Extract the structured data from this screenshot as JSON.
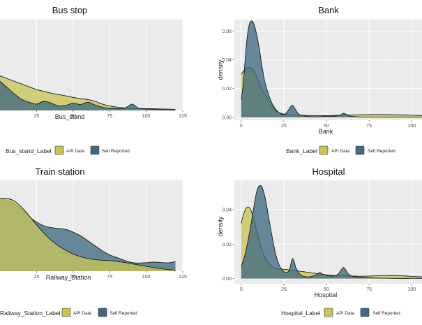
{
  "colors": {
    "api": "#c8c35a",
    "self": "#3f6a80",
    "panel": "#ebebeb",
    "grid": "#ffffff"
  },
  "chart_data": [
    {
      "type": "area",
      "title": "Bus stop",
      "xlabel": "Bus_stand",
      "ylabel": "",
      "xlim": [
        0,
        125
      ],
      "ylim": [
        0,
        0.05
      ],
      "xticks": [
        25,
        50,
        75,
        100,
        125
      ],
      "yticks": [],
      "legend": {
        "title": "Bus_stand_Label",
        "items": [
          "API Data",
          "Self Reported"
        ],
        "position": "bottom"
      },
      "series": [
        {
          "name": "API Data",
          "color": "api",
          "x": [
            0,
            10,
            20,
            25,
            30,
            35,
            40,
            45,
            50,
            55,
            60,
            65,
            70,
            75,
            80,
            85,
            90,
            95,
            100,
            110,
            120
          ],
          "y": [
            0.019,
            0.016,
            0.013,
            0.0115,
            0.0105,
            0.0095,
            0.0088,
            0.008,
            0.0072,
            0.0065,
            0.006,
            0.005,
            0.0035,
            0.0025,
            0.0018,
            0.0014,
            0.0012,
            0.0011,
            0.001,
            0.0008,
            0.0006
          ]
        },
        {
          "name": "Self Reported",
          "color": "self",
          "x": [
            0,
            5,
            10,
            15,
            20,
            25,
            30,
            35,
            40,
            45,
            50,
            55,
            60,
            65,
            70,
            75,
            80,
            85,
            88,
            90,
            92,
            95,
            100,
            110,
            120
          ],
          "y": [
            0.016,
            0.0125,
            0.009,
            0.006,
            0.0045,
            0.0035,
            0.005,
            0.004,
            0.0025,
            0.0028,
            0.004,
            0.0033,
            0.0045,
            0.003,
            0.0018,
            0.0012,
            0.001,
            0.0012,
            0.0025,
            0.0035,
            0.0028,
            0.0012,
            0.0008,
            0.0004,
            0.0003
          ]
        }
      ]
    },
    {
      "type": "area",
      "title": "Bank",
      "xlabel": "Bank",
      "ylabel": "density",
      "xlim": [
        -4,
        106
      ],
      "ylim": [
        -0.002,
        0.068
      ],
      "xticks": [
        0,
        25,
        50,
        75,
        100
      ],
      "yticks": [
        0.0,
        0.02,
        0.04,
        0.06
      ],
      "ytick_labels": [
        "0.00",
        "0.02",
        "0.04",
        "0.06"
      ],
      "legend": {
        "title": "Bank_Label",
        "items": [
          "API Data",
          "Self Reported"
        ],
        "position": "bottom"
      },
      "series": [
        {
          "name": "API Data",
          "color": "api",
          "x": [
            0,
            2,
            4,
            6,
            8,
            10,
            12,
            15,
            18,
            21,
            24,
            27,
            30,
            35,
            40,
            50,
            60,
            70,
            80,
            90,
            100,
            106
          ],
          "y": [
            0.03,
            0.033,
            0.0345,
            0.034,
            0.031,
            0.026,
            0.02,
            0.014,
            0.008,
            0.004,
            0.0025,
            0.002,
            0.0018,
            0.0015,
            0.0013,
            0.0012,
            0.0015,
            0.0018,
            0.002,
            0.0018,
            0.0015,
            0.0012
          ]
        },
        {
          "name": "Self Reported",
          "color": "self",
          "x": [
            0,
            1,
            2,
            3,
            4,
            5,
            6,
            7,
            8,
            9,
            10,
            11,
            12,
            13,
            14,
            16,
            18,
            20,
            22,
            24,
            26,
            28,
            30,
            32,
            34,
            38,
            42,
            46,
            50,
            54,
            58,
            60,
            62,
            64,
            70,
            80,
            90,
            100,
            106
          ],
          "y": [
            0.0125,
            0.021,
            0.035,
            0.05,
            0.06,
            0.0655,
            0.067,
            0.0662,
            0.063,
            0.058,
            0.052,
            0.045,
            0.037,
            0.03,
            0.024,
            0.016,
            0.01,
            0.006,
            0.0035,
            0.002,
            0.0025,
            0.0055,
            0.0085,
            0.005,
            0.002,
            0.0008,
            0.0005,
            0.0005,
            0.0008,
            0.0008,
            0.0015,
            0.0028,
            0.0018,
            0.0008,
            0.0002,
            0.0001,
            0.0001,
            0.0001,
            0.0001
          ]
        }
      ]
    },
    {
      "type": "area",
      "title": "Train station",
      "xlabel": "Railway_Station",
      "ylabel": "",
      "xlim": [
        0,
        125
      ],
      "ylim": [
        0,
        0.05
      ],
      "xticks": [
        25,
        50,
        75,
        100,
        125
      ],
      "yticks": [],
      "legend": {
        "title": "Railway_Station_Label",
        "items": [
          "API Data",
          "Self Reported"
        ],
        "position": "bottom"
      },
      "series": [
        {
          "name": "Self Reported",
          "color": "self",
          "x": [
            0,
            5,
            10,
            15,
            20,
            25,
            30,
            35,
            40,
            45,
            50,
            55,
            60,
            65,
            70,
            75,
            80,
            85,
            90,
            95,
            100,
            105,
            110,
            115,
            120
          ],
          "y": [
            0.04,
            0.039,
            0.037,
            0.034,
            0.03,
            0.027,
            0.025,
            0.024,
            0.0235,
            0.023,
            0.0215,
            0.0195,
            0.0168,
            0.014,
            0.0112,
            0.009,
            0.0075,
            0.006,
            0.0048,
            0.0045,
            0.0047,
            0.005,
            0.0048,
            0.0046,
            0.0053
          ]
        },
        {
          "name": "API Data",
          "color": "api",
          "x": [
            0,
            5,
            10,
            15,
            20,
            25,
            30,
            35,
            40,
            45,
            50,
            55,
            60,
            65,
            70,
            75,
            80,
            85,
            90,
            95,
            100,
            105,
            110,
            115,
            120
          ],
          "y": [
            0.04,
            0.04,
            0.0385,
            0.035,
            0.0305,
            0.0255,
            0.021,
            0.017,
            0.014,
            0.0115,
            0.0095,
            0.008,
            0.007,
            0.0064,
            0.006,
            0.0058,
            0.0054,
            0.0048,
            0.0041,
            0.0034,
            0.0027,
            0.002,
            0.0014,
            0.0009,
            0.0005
          ]
        }
      ]
    },
    {
      "type": "area",
      "title": "Hospital",
      "xlabel": "Hospital",
      "ylabel": "density",
      "xlim": [
        -4,
        106
      ],
      "ylim": [
        -0.003,
        0.057
      ],
      "xticks": [
        0,
        25,
        50,
        75,
        100
      ],
      "yticks": [
        0.0,
        0.02,
        0.04
      ],
      "ytick_labels": [
        "0.00",
        "0.02",
        "0.04"
      ],
      "legend": {
        "title": "Hospital_Label",
        "items": [
          "API Data",
          "Self Reported"
        ],
        "position": "bottom"
      },
      "series": [
        {
          "name": "API Data",
          "color": "api",
          "x": [
            0,
            1,
            2,
            3,
            4,
            5,
            6,
            7,
            8,
            9,
            10,
            12,
            14,
            16,
            18,
            20,
            22,
            24,
            27,
            30,
            35,
            40,
            45,
            50,
            55,
            60,
            65,
            70,
            75,
            80,
            85,
            90,
            95,
            100,
            106
          ],
          "y": [
            0.032,
            0.036,
            0.039,
            0.041,
            0.0415,
            0.041,
            0.039,
            0.036,
            0.032,
            0.028,
            0.024,
            0.017,
            0.012,
            0.009,
            0.007,
            0.0058,
            0.0055,
            0.0055,
            0.0052,
            0.0048,
            0.0042,
            0.0035,
            0.0028,
            0.0022,
            0.0018,
            0.0017,
            0.0015,
            0.0014,
            0.0015,
            0.0017,
            0.0018,
            0.0018,
            0.0016,
            0.0013,
            0.001
          ]
        },
        {
          "name": "Self Reported",
          "color": "self",
          "x": [
            0,
            2,
            4,
            6,
            8,
            9,
            10,
            11,
            12,
            13,
            14,
            15,
            16,
            18,
            20,
            22,
            24,
            26,
            28,
            29,
            30,
            31,
            32,
            34,
            36,
            40,
            44,
            46,
            48,
            52,
            56,
            59,
            60,
            61,
            63,
            66,
            70,
            80,
            90,
            100,
            106
          ],
          "y": [
            0.007,
            0.013,
            0.022,
            0.033,
            0.045,
            0.05,
            0.053,
            0.054,
            0.0535,
            0.051,
            0.047,
            0.042,
            0.036,
            0.025,
            0.015,
            0.0085,
            0.005,
            0.0035,
            0.0045,
            0.008,
            0.0115,
            0.01,
            0.0065,
            0.003,
            0.0015,
            0.001,
            0.0022,
            0.0035,
            0.0025,
            0.0015,
            0.002,
            0.0055,
            0.0065,
            0.0055,
            0.0025,
            0.0012,
            0.0008,
            0.0003,
            0.0001,
            0.0001,
            0.0001
          ]
        }
      ]
    }
  ]
}
